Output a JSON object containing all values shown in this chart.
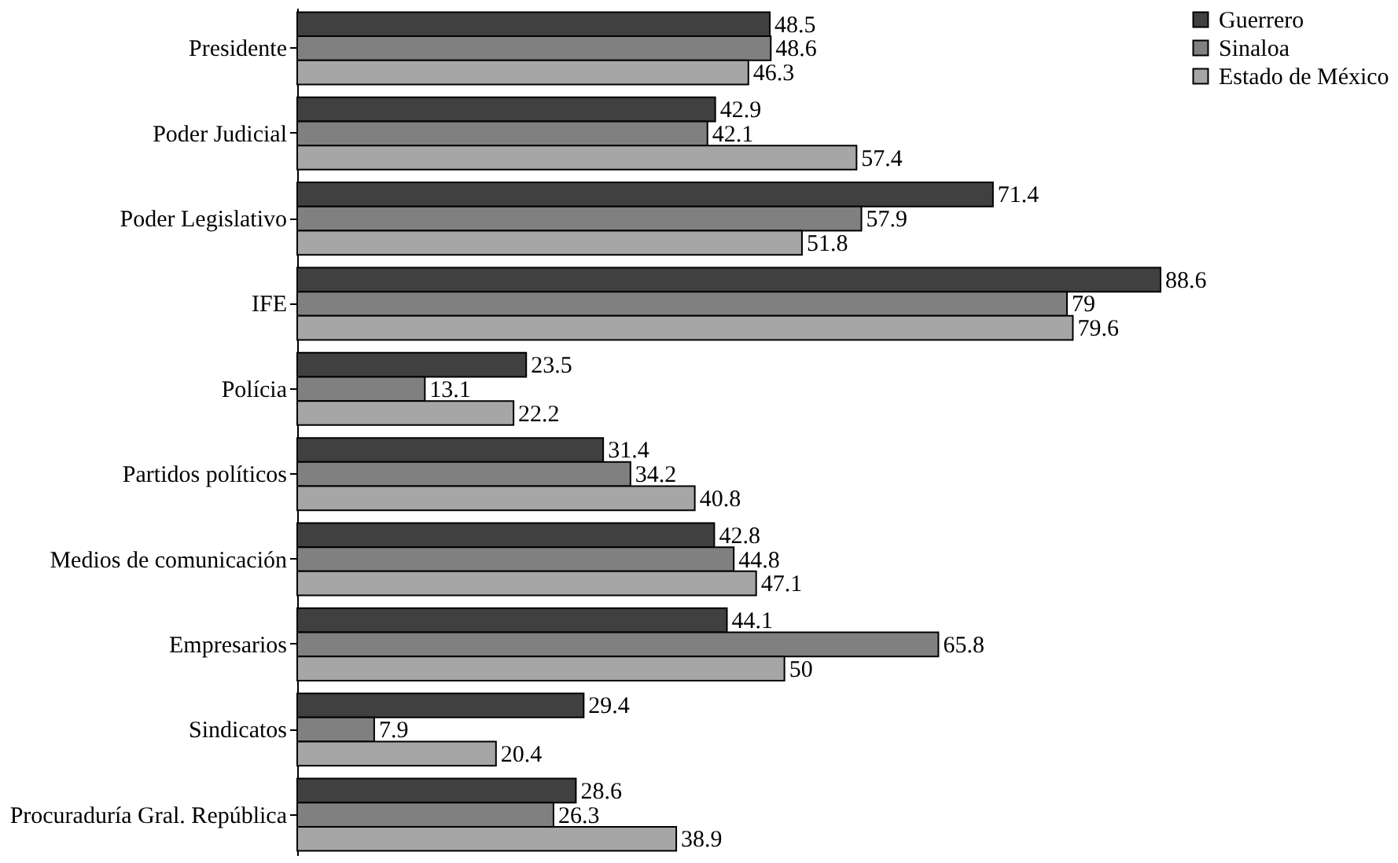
{
  "chart_data": {
    "type": "bar",
    "orientation": "horizontal",
    "categories": [
      "Presidente",
      "Poder Judicial",
      "Poder Legislativo",
      "IFE",
      "Polícia",
      "Partidos políticos",
      "Medios de comunicación",
      "Empresarios",
      "Sindicatos",
      "Procuraduría Gral. República"
    ],
    "series": [
      {
        "name": "Guerrero",
        "color": "#404040",
        "values": [
          48.5,
          42.9,
          71.4,
          88.6,
          23.5,
          31.4,
          42.8,
          44.1,
          29.4,
          28.6
        ]
      },
      {
        "name": "Sinaloa",
        "color": "#808080",
        "values": [
          48.6,
          42.1,
          57.9,
          79,
          13.1,
          34.2,
          44.8,
          65.8,
          7.9,
          26.3
        ]
      },
      {
        "name": "Estado de México",
        "color": "#a6a6a6",
        "values": [
          46.3,
          57.4,
          51.8,
          79.6,
          22.2,
          40.8,
          47.1,
          50,
          20.4,
          38.9
        ]
      }
    ],
    "data_labels": true,
    "legend": "right",
    "grid": false,
    "tick_labels": "y"
  }
}
